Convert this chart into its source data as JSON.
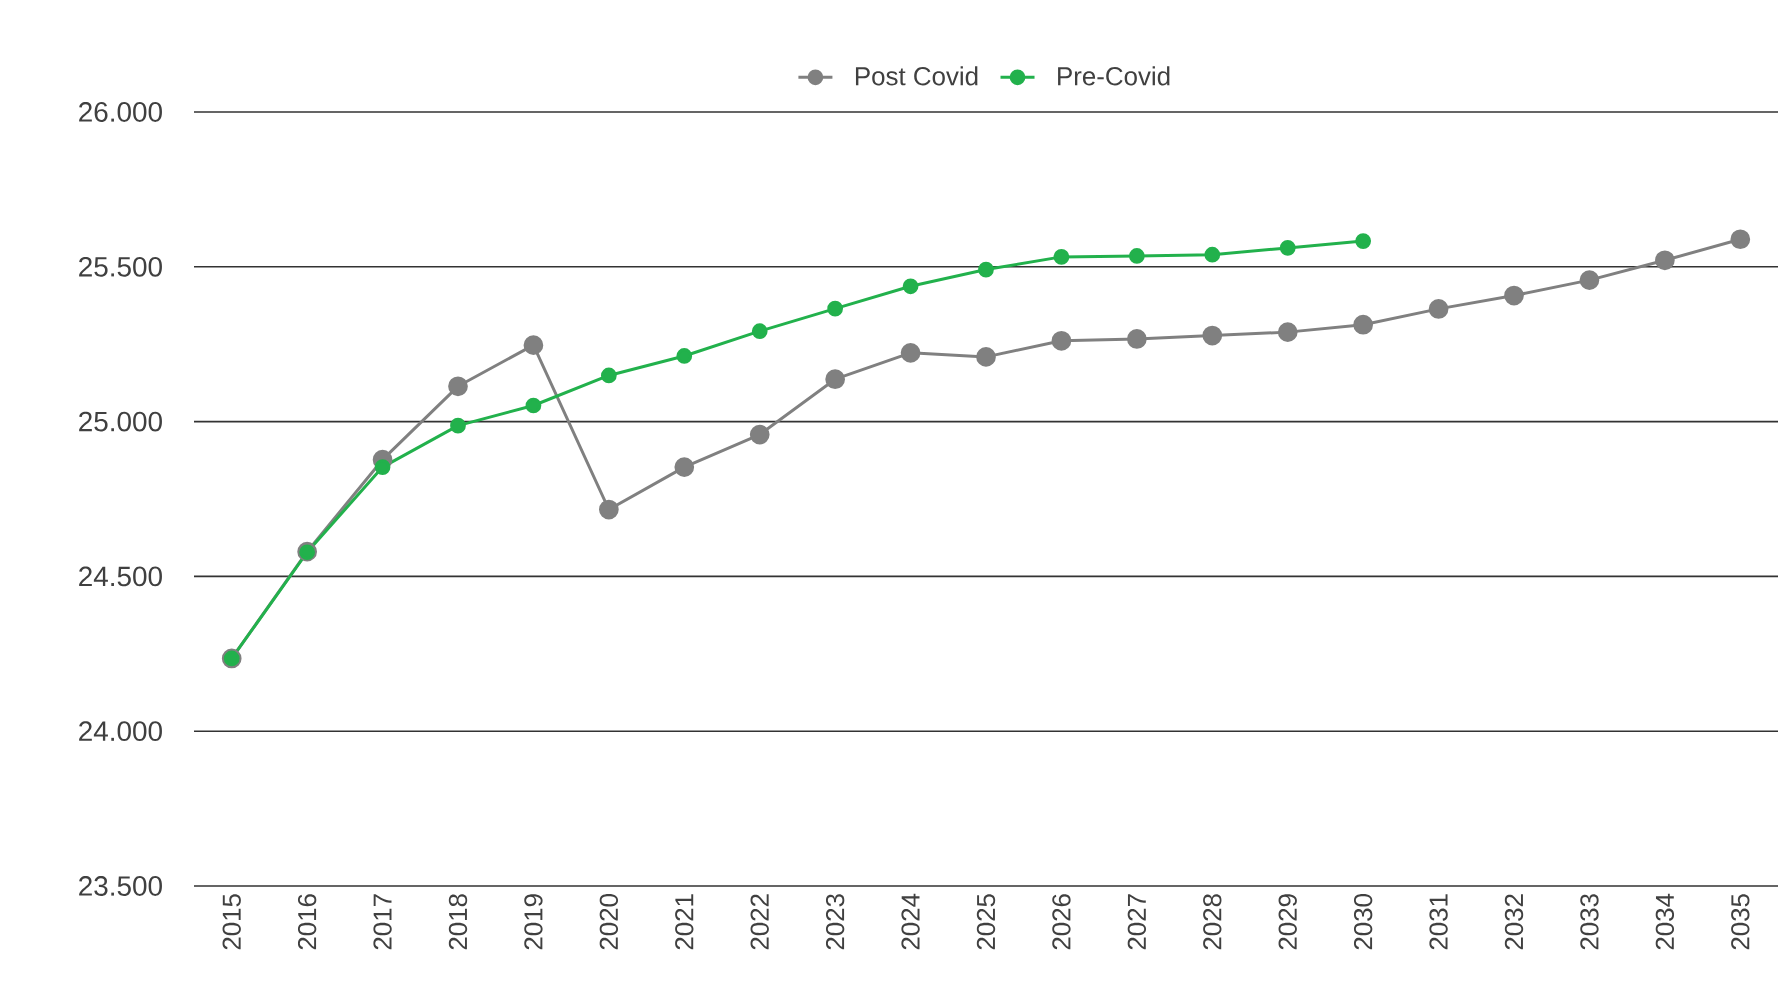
{
  "chart_data": {
    "type": "line",
    "categories": [
      "2015",
      "2016",
      "2017",
      "2018",
      "2019",
      "2020",
      "2021",
      "2022",
      "2023",
      "2024",
      "2025",
      "2026",
      "2027",
      "2028",
      "2029",
      "2030",
      "2031",
      "2032",
      "2033",
      "2034",
      "2035"
    ],
    "series": [
      {
        "name": "Post Covid",
        "color": "#808080",
        "values": [
          24235,
          24580,
          24877,
          25114,
          25247,
          24716,
          24853,
          24958,
          25137,
          25222,
          25209,
          25261,
          25267,
          25278,
          25289,
          25313,
          25364,
          25407,
          25457,
          25521,
          25589
        ]
      },
      {
        "name": "Pre-Covid",
        "color": "#22b14c",
        "values": [
          24235,
          24578,
          24853,
          24987,
          25052,
          25149,
          25212,
          25292,
          25365,
          25437,
          25491,
          25532,
          25535,
          25539,
          25561,
          25583,
          null,
          null,
          null,
          null,
          null
        ]
      }
    ],
    "ylim": [
      23500,
      26000
    ],
    "yticks": [
      {
        "value": 23500,
        "label": "23.500"
      },
      {
        "value": 24000,
        "label": "24.000"
      },
      {
        "value": 24500,
        "label": "24.500"
      },
      {
        "value": 25000,
        "label": "25.000"
      },
      {
        "value": 25500,
        "label": "25.500"
      },
      {
        "value": 26000,
        "label": "26.000"
      }
    ],
    "grid": "y",
    "legend": "top",
    "marker": "circle",
    "line_style": "solid"
  }
}
